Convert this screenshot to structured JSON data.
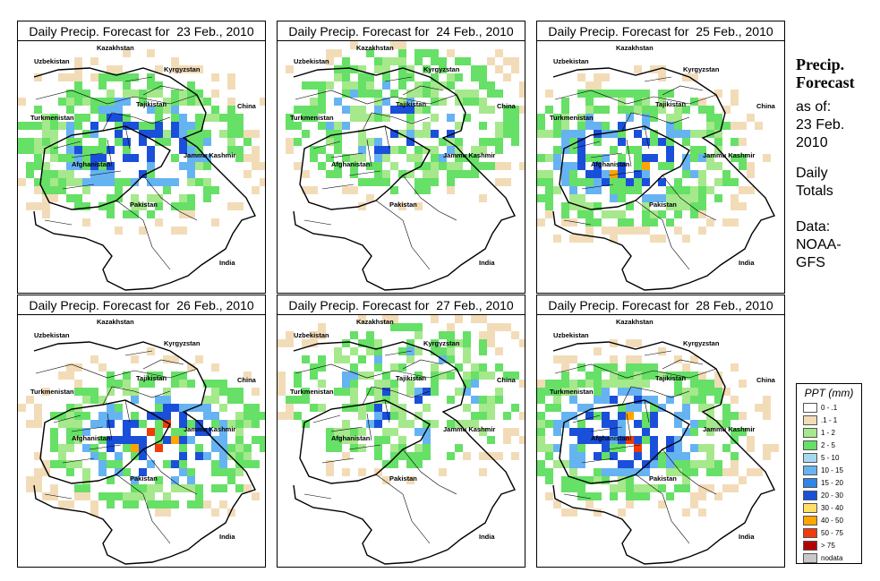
{
  "panels": [
    {
      "title": "Daily Precip. Forecast for  23 Feb., 2010"
    },
    {
      "title": "Daily Precip. Forecast for  24 Feb., 2010"
    },
    {
      "title": "Daily Precip. Forecast for  25 Feb., 2010"
    },
    {
      "title": "Daily Precip. Forecast for  26 Feb., 2010"
    },
    {
      "title": "Daily Precip. Forecast for  27 Feb., 2010"
    },
    {
      "title": "Daily Precip. Forecast for  28 Feb., 2010"
    }
  ],
  "map_labels": {
    "kazakhstan": "Kazakhstan",
    "uzbekistan": "Uzbekistan",
    "kyrgyzstan": "Kyrgyzstan",
    "tajikistan": "Tajikistan",
    "turkmenistan": "Turkmenistan",
    "china": "China",
    "jammu_kashmir": "Jammu Kashmir",
    "afghanistan": "Afghanistan",
    "pakistan": "Pakistan",
    "india": "India"
  },
  "sidebar": {
    "title_line1": "Precip.",
    "title_line2": "Forecast",
    "asof_line1": "as of:",
    "asof_line2": "23 Feb.",
    "asof_line3": "2010",
    "totals_line1": "Daily",
    "totals_line2": "Totals",
    "data_line1": "Data:",
    "data_line2": "NOAA-",
    "data_line3": "GFS"
  },
  "legend": {
    "title": "PPT (mm)",
    "items": [
      {
        "label": "0 - .1",
        "color": "#ffffff"
      },
      {
        "label": ".1 - 1",
        "color": "#f2dcb8"
      },
      {
        "label": "1 - 2",
        "color": "#a6e88c"
      },
      {
        "label": "2 - 5",
        "color": "#66e066"
      },
      {
        "label": "5 - 10",
        "color": "#a6d8f2"
      },
      {
        "label": "10 - 15",
        "color": "#66b3f2"
      },
      {
        "label": "15 - 20",
        "color": "#2e86e8"
      },
      {
        "label": "20 - 30",
        "color": "#1a4fd9"
      },
      {
        "label": "30 - 40",
        "color": "#ffe066"
      },
      {
        "label": "40 - 50",
        "color": "#ffa500"
      },
      {
        "label": "50 - 75",
        "color": "#f03c0a"
      },
      {
        "label": "> 75",
        "color": "#b40000"
      },
      {
        "label": "nodata",
        "color": "#c8c8c8"
      }
    ]
  }
}
